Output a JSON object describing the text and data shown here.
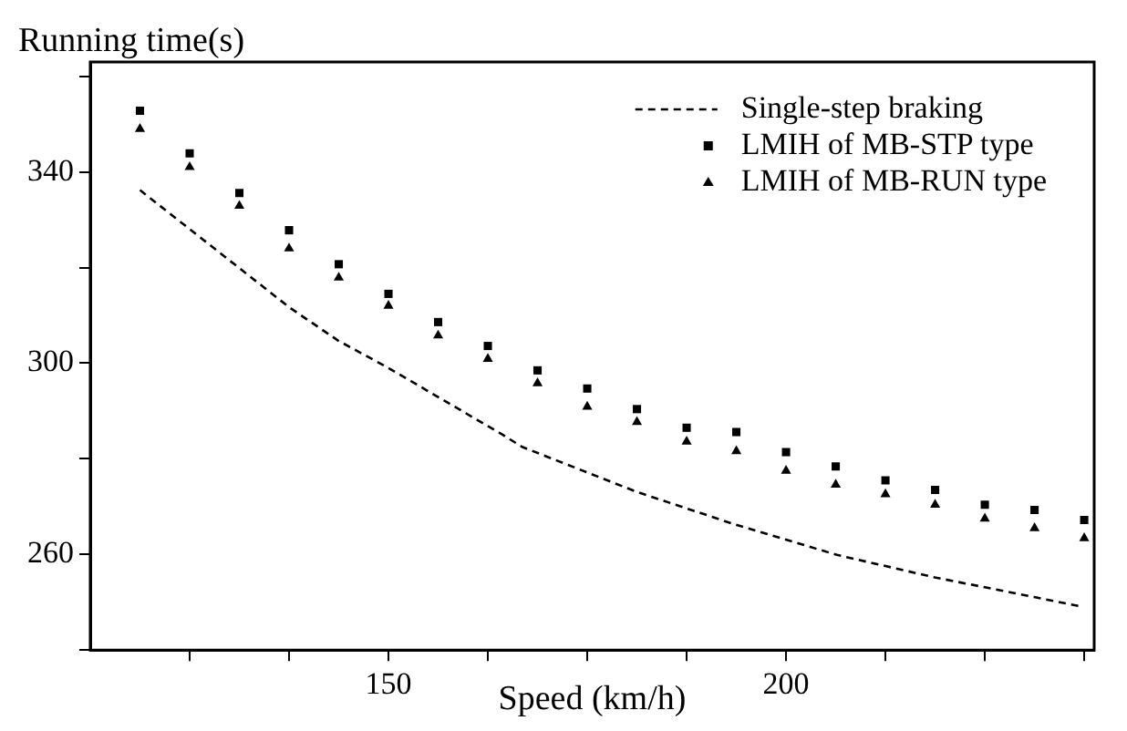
{
  "chart_data": {
    "type": "scatter",
    "xlabel": "Speed (km/h)",
    "ylabel": "Running time(s)",
    "xlim": [
      112.5,
      238.75
    ],
    "ylim": [
      240,
      363
    ],
    "xticks": [
      {
        "value": 125,
        "label": null
      },
      {
        "value": 137.5,
        "label": null
      },
      150,
      {
        "value": 162.5,
        "label": null
      },
      {
        "value": 175,
        "label": null
      },
      {
        "value": 187.5,
        "label": null
      },
      200,
      {
        "value": 212.5,
        "label": null
      },
      {
        "value": 225,
        "label": null
      },
      {
        "value": 237.5,
        "label": null
      }
    ],
    "yticks": [
      {
        "value": 240,
        "label": null
      },
      260,
      {
        "value": 280,
        "label": null
      },
      300,
      {
        "value": 320,
        "label": null
      },
      340,
      {
        "value": 360,
        "label": null
      }
    ],
    "x": [
      118.75,
      125,
      131.25,
      137.5,
      143.75,
      150,
      156.25,
      162.5,
      168.75,
      175,
      181.25,
      187.5,
      193.75,
      200,
      206.25,
      212.5,
      218.75,
      225,
      231.25,
      237.5
    ],
    "series": [
      {
        "name": "Single-step braking",
        "type": "line",
        "color": "#000000",
        "line_style": "dashed",
        "marker": "none",
        "x": [
          118.75,
          137.6,
          143.7,
          150,
          164.4,
          166.8,
          181.2,
          193.7,
          206.4,
          218.7,
          231.2,
          237.1
        ],
        "values": [
          336.2,
          311.6,
          304.7,
          299,
          285,
          282.5,
          273.1,
          266.2,
          259.9,
          255.2,
          251.1,
          249.1
        ]
      },
      {
        "name": "LMIH of MB-STP type",
        "type": "scatter",
        "color": "#000000",
        "marker": "square",
        "values": [
          352.8,
          343.9,
          335.6,
          327.8,
          320.7,
          314.5,
          308.6,
          303.6,
          298.5,
          294.7,
          290.4,
          286.5,
          285.6,
          281.4,
          278.4,
          275.5,
          273.5,
          270.4,
          269.3,
          267.2
        ]
      },
      {
        "name": "LMIH of MB-RUN type",
        "type": "scatter",
        "color": "#000000",
        "marker": "triangle",
        "values": [
          349.0,
          341.0,
          332.9,
          324.0,
          317.9,
          312.0,
          305.8,
          300.9,
          295.8,
          290.9,
          287.7,
          283.6,
          281.6,
          277.5,
          274.6,
          272.6,
          270.4,
          267.5,
          265.5,
          263.4
        ]
      }
    ],
    "grid": false,
    "legend": "top right"
  }
}
